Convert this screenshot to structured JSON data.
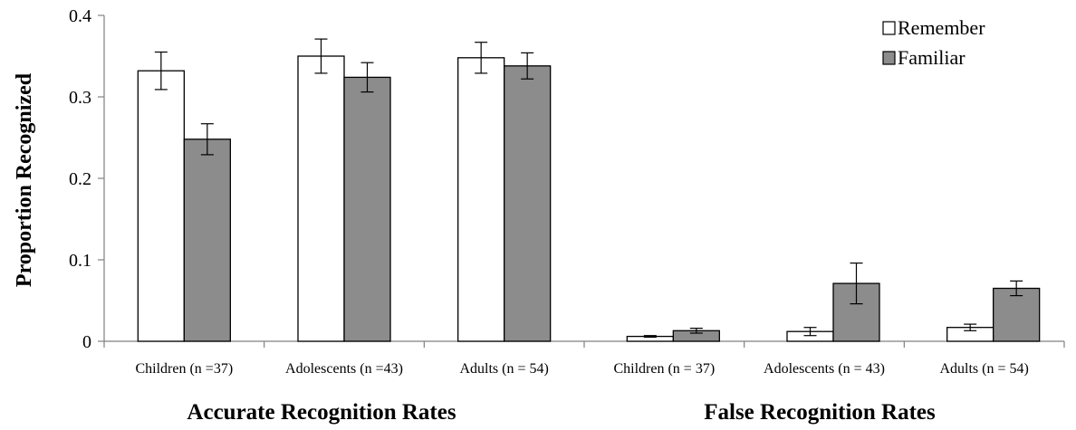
{
  "chart_data": {
    "type": "bar",
    "ylabel": "Proportion Recognized",
    "ylim": [
      0,
      0.4
    ],
    "yticks": [
      "0",
      "0.1",
      "0.2",
      "0.3",
      "0.4"
    ],
    "ytick_values": [
      0,
      0.1,
      0.2,
      0.3,
      0.4
    ],
    "categories": [
      "Children (n =37)",
      "Adolescents (n =43)",
      "Adults (n = 54)",
      "Children (n = 37)",
      "Adolescents (n = 43)",
      "Adults (n = 54)"
    ],
    "groups": [
      {
        "label": "Accurate Recognition Rates",
        "categories": [
          0,
          1,
          2
        ]
      },
      {
        "label": "False Recognition Rates",
        "categories": [
          3,
          4,
          5
        ]
      }
    ],
    "series": [
      {
        "name": "Remember",
        "color": "#ffffff",
        "values": [
          0.332,
          0.35,
          0.348,
          0.006,
          0.012,
          0.017
        ],
        "errors": [
          0.023,
          0.021,
          0.019,
          0.001,
          0.005,
          0.004
        ]
      },
      {
        "name": "Familiar",
        "color": "#8c8c8c",
        "values": [
          0.248,
          0.324,
          0.338,
          0.013,
          0.071,
          0.065
        ],
        "errors": [
          0.019,
          0.018,
          0.016,
          0.003,
          0.025,
          0.009
        ]
      }
    ],
    "legend_position": "top-right",
    "grid": false
  }
}
